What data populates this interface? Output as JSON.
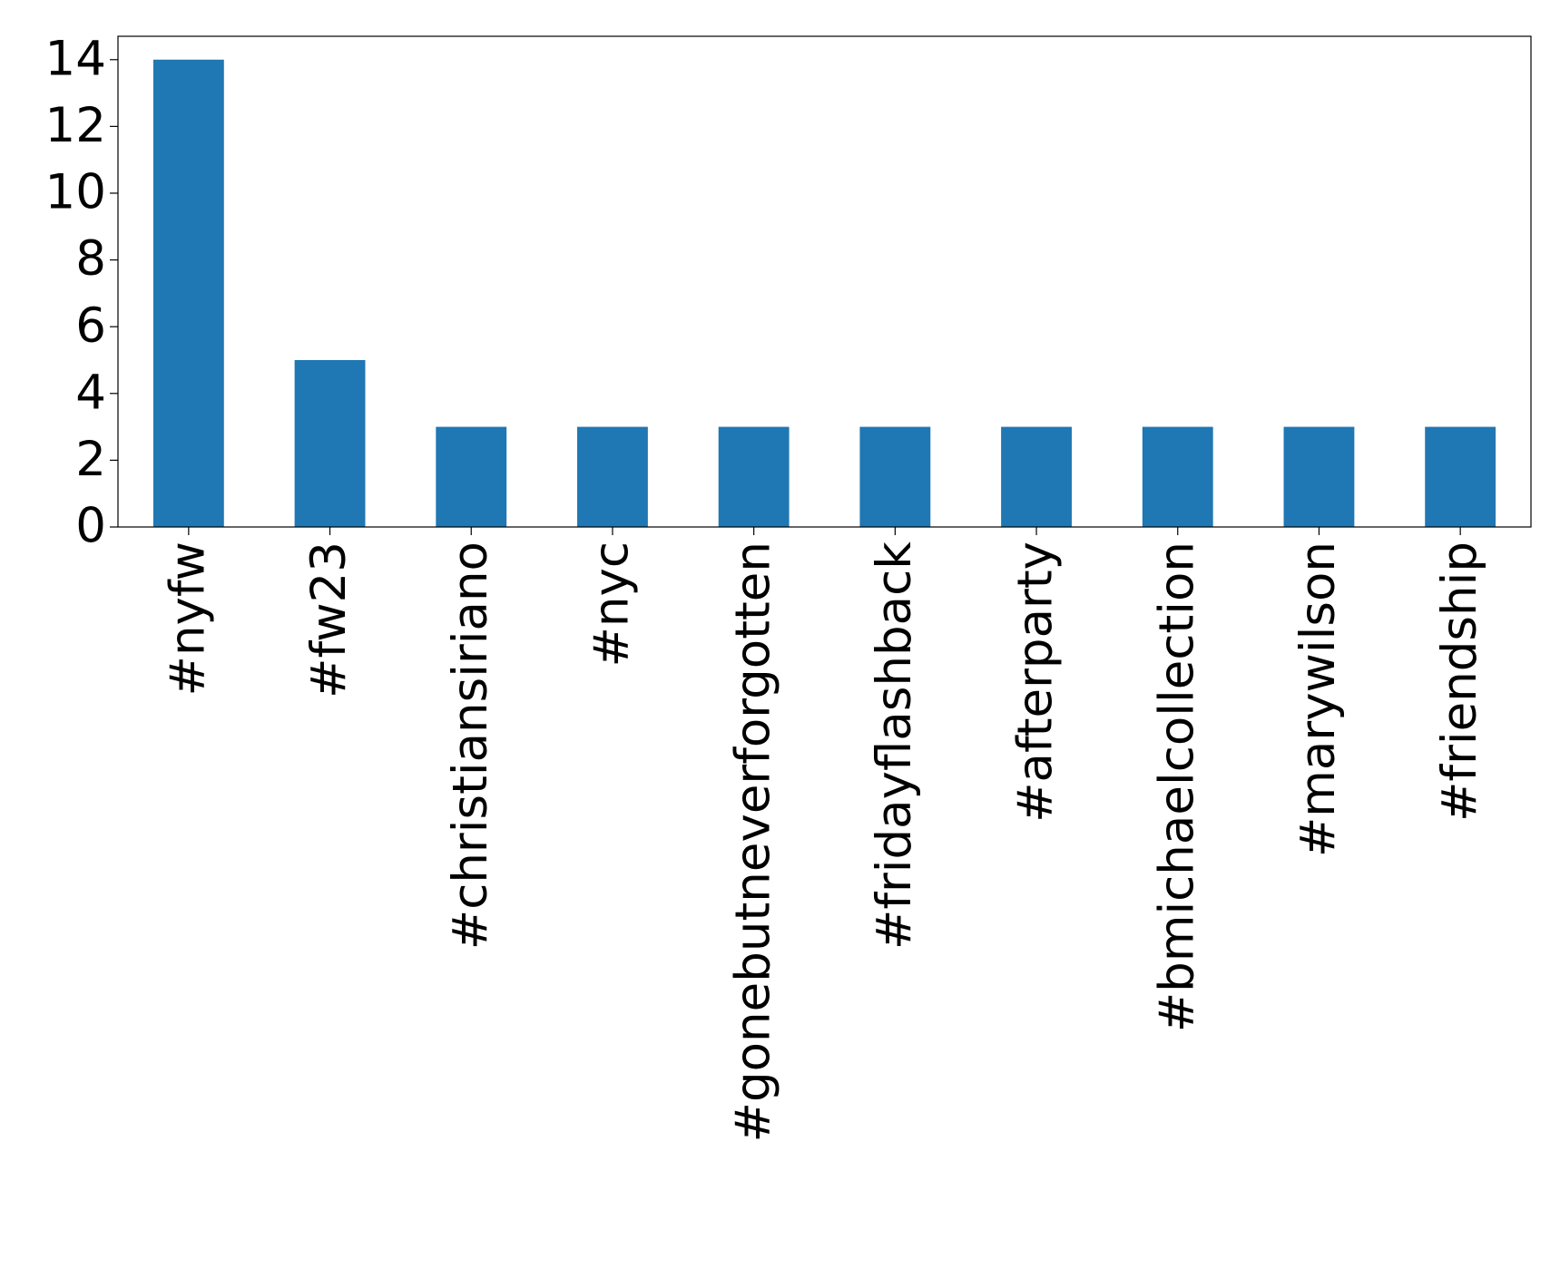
{
  "chart_data": {
    "type": "bar",
    "categories": [
      "#nyfw",
      "#fw23",
      "#christiansiriano",
      "#nyc",
      "#gonebutneverforgotten",
      "#fridayflashback",
      "#afterparty",
      "#bmichaelcollection",
      "#marywilson",
      "#friendship"
    ],
    "values": [
      14,
      5,
      3,
      3,
      3,
      3,
      3,
      3,
      3,
      3
    ],
    "color": "#1f77b4",
    "ylim": [
      0,
      14.7
    ],
    "yticks": [
      0,
      2,
      4,
      6,
      8,
      10,
      12,
      14
    ],
    "grid": false
  }
}
